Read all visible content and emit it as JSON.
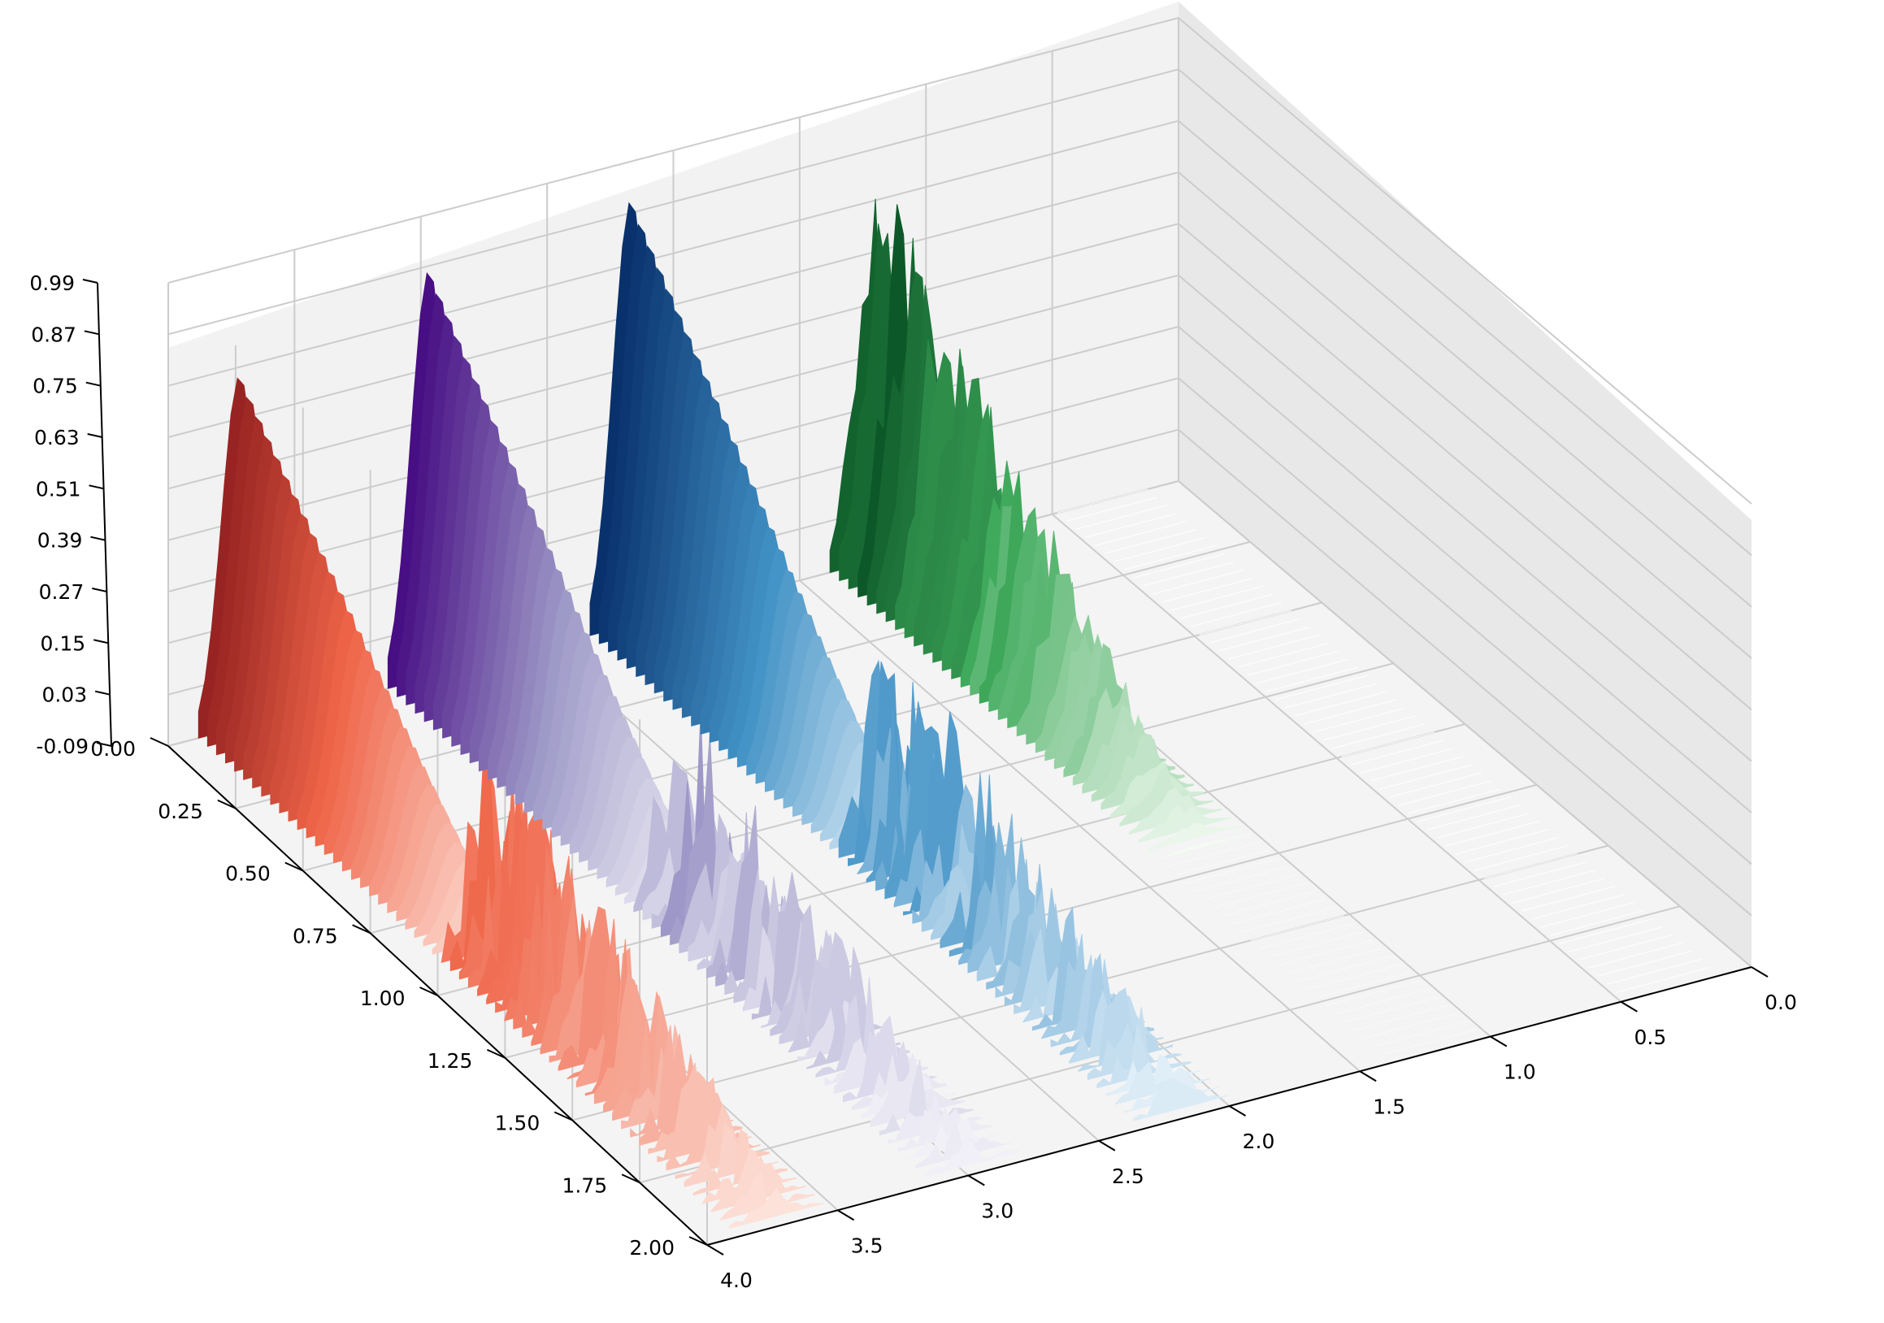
{
  "chart_data": {
    "type": "surface-3d",
    "title": "",
    "xlabel": "",
    "ylabel": "",
    "zlabel": "",
    "grid": true,
    "legend": "none",
    "axes": {
      "x_front": {
        "ticks": [
          0.0,
          0.25,
          0.5,
          0.75,
          1.0,
          1.25,
          1.5,
          1.75,
          2.0
        ],
        "tick_labels": [
          "0.00",
          "0.25",
          "0.50",
          "0.75",
          "1.00",
          "1.25",
          "1.50",
          "1.75",
          "2.00"
        ]
      },
      "y_right": {
        "ticks": [
          0.0,
          0.5,
          1.0,
          1.5,
          2.0,
          2.5,
          3.0,
          3.5,
          4.0
        ],
        "tick_labels": [
          "0.0",
          "0.5",
          "1.0",
          "1.5",
          "2.0",
          "2.5",
          "3.0",
          "3.5",
          "4.0"
        ]
      },
      "z": {
        "ticks": [
          -0.09,
          0.03,
          0.15,
          0.27,
          0.39,
          0.51,
          0.63,
          0.75,
          0.87,
          0.99
        ],
        "tick_labels": [
          "-0.09",
          "0.03",
          "0.15",
          "0.27",
          "0.39",
          "0.51",
          "0.63",
          "0.75",
          "0.87",
          "0.99"
        ],
        "range": [
          -0.09,
          0.99
        ]
      }
    },
    "series": [
      {
        "colormap": "Reds",
        "dark": "#67000d",
        "mid": "#ef6548",
        "light": "#fff5f0",
        "smooth_peak": 0.82,
        "noisy_peak": 0.6,
        "offset": 3.7
      },
      {
        "colormap": "Purples",
        "dark": "#3f007d",
        "mid": "#9e9ac8",
        "light": "#fcfbfd",
        "smooth_peak": 0.95,
        "noisy_peak": 0.55,
        "offset": 2.95
      },
      {
        "colormap": "Blues",
        "dark": "#08306b",
        "mid": "#4292c6",
        "light": "#f7fbff",
        "smooth_peak": 0.99,
        "noisy_peak": 0.6,
        "offset": 2.15
      },
      {
        "colormap": "Greens",
        "dark": "#00441b",
        "mid": "#41ab5d",
        "light": "#f7fcf5",
        "smooth_peak": 0.0,
        "noisy_peak": 0.99,
        "offset": 1.2
      },
      {
        "colormap": "Greys",
        "dark": "#000000",
        "mid": "#969696",
        "light": "#ffffff",
        "smooth_peak": 0.0,
        "noisy_peak": 0.0,
        "offset": 0.3
      }
    ]
  }
}
